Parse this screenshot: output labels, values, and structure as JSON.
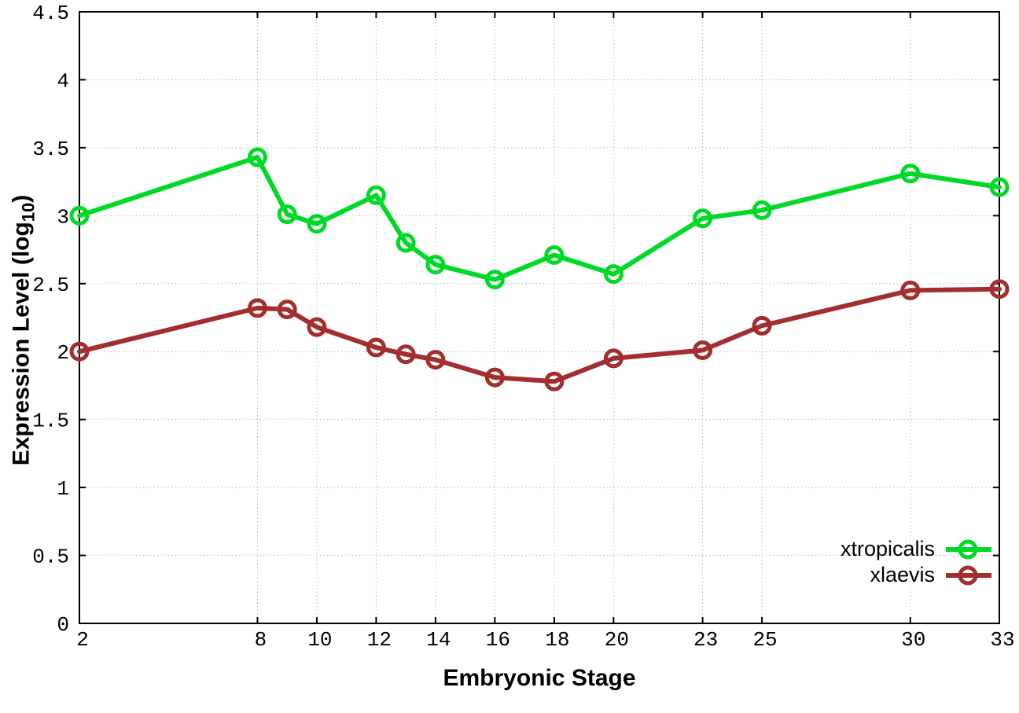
{
  "chart_data": {
    "type": "line",
    "title": "",
    "xlabel": "Embryonic Stage",
    "ylabel": "Expression Level (log10)",
    "ylabel_parts": {
      "main": "Expression Level (log",
      "sub": "10",
      "close": ")"
    },
    "x": [
      2,
      8,
      9,
      10,
      12,
      13,
      14,
      16,
      18,
      20,
      23,
      25,
      30,
      33
    ],
    "x_ticks": [
      2,
      8,
      10,
      12,
      14,
      16,
      18,
      20,
      23,
      25,
      30,
      33
    ],
    "y_ticks": [
      0,
      0.5,
      1,
      1.5,
      2,
      2.5,
      3,
      3.5,
      4,
      4.5
    ],
    "xlim": [
      2,
      33
    ],
    "ylim": [
      0,
      4.5
    ],
    "grid": true,
    "grid_style": "dotted",
    "legend_position": "inside-bottom-right",
    "marker": "open-circle",
    "colors": {
      "axis": "#000000",
      "grid": "#bbbbbb",
      "background": "#ffffff"
    },
    "series": [
      {
        "name": "xtropicalis",
        "color": "#00d926",
        "values": [
          3.0,
          3.43,
          3.01,
          2.94,
          3.15,
          2.8,
          2.64,
          2.53,
          2.71,
          2.57,
          2.98,
          3.04,
          3.31,
          3.21
        ]
      },
      {
        "name": "xlaevis",
        "color": "#a32e2e",
        "values": [
          2.0,
          2.32,
          2.31,
          2.18,
          2.03,
          1.98,
          1.94,
          1.81,
          1.78,
          1.95,
          2.01,
          2.19,
          2.45,
          2.46
        ]
      }
    ]
  }
}
